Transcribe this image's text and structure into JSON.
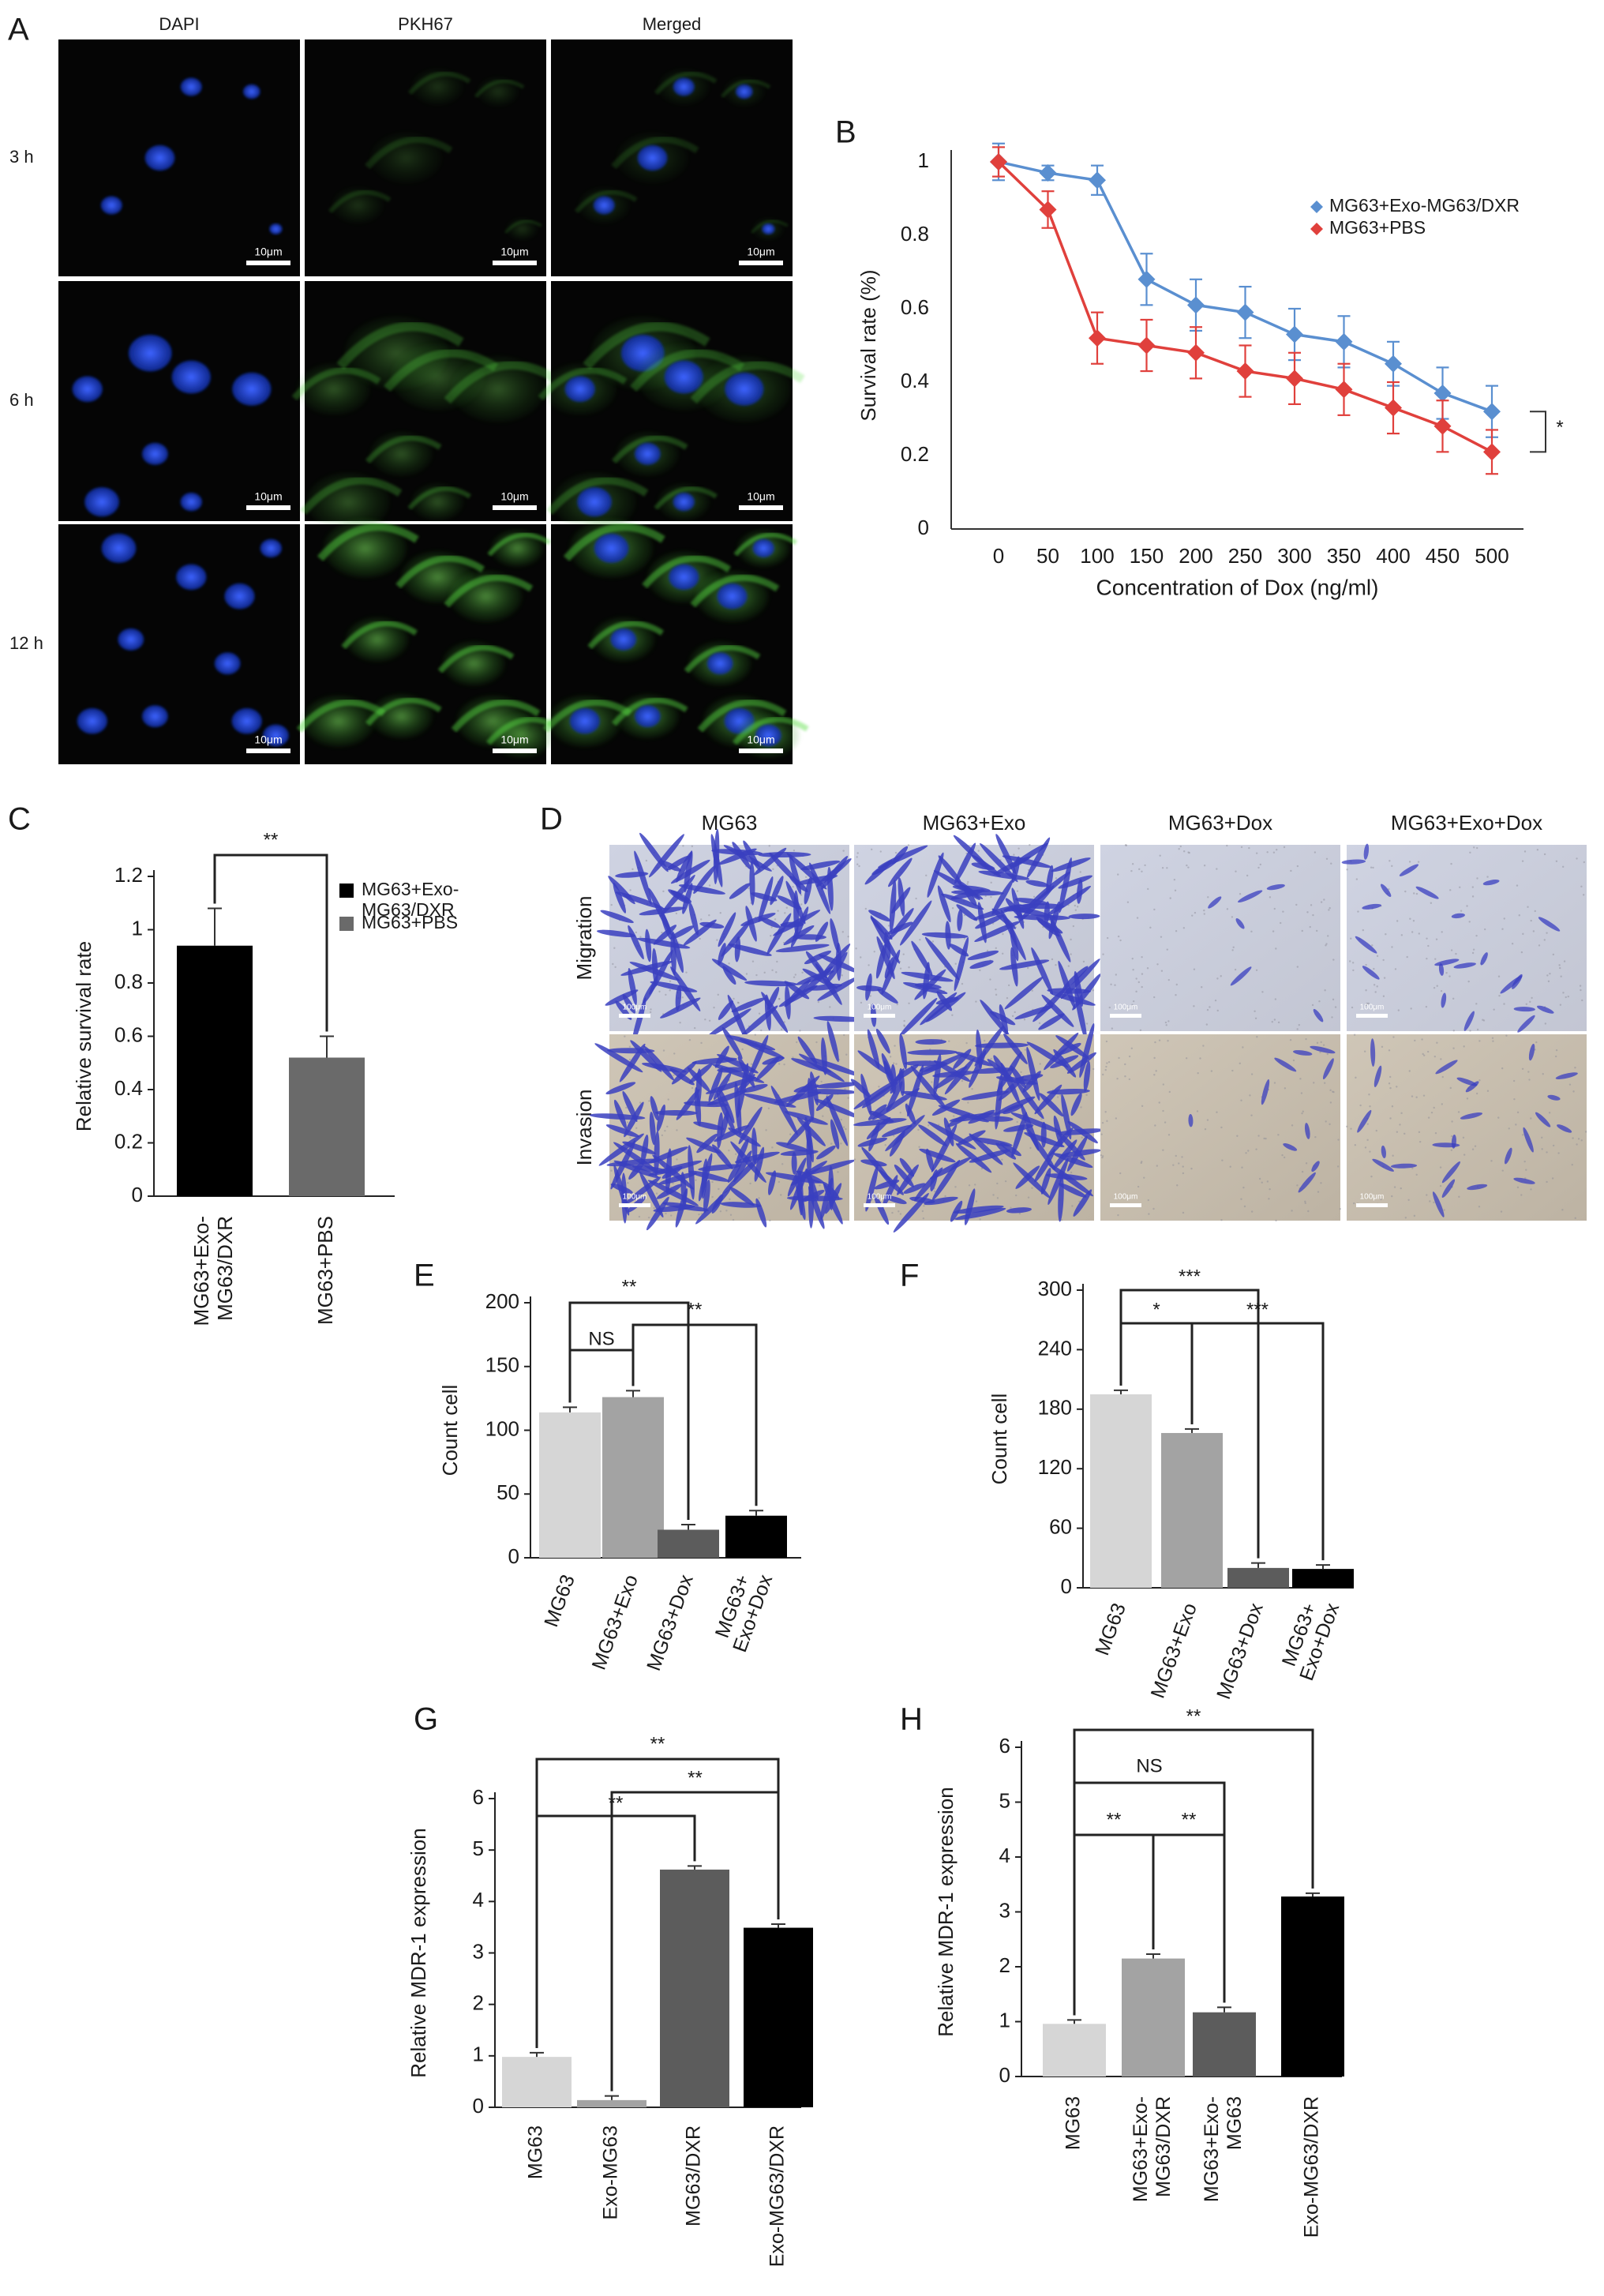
{
  "panel_letters": [
    "A",
    "B",
    "C",
    "D",
    "E",
    "F",
    "G",
    "H"
  ],
  "panel_a": {
    "columns": [
      "DAPI",
      "PKH67",
      "Merged"
    ],
    "rows": [
      "3 h",
      "6 h",
      "12 h"
    ],
    "scale_bar": "10μm"
  },
  "panel_d": {
    "columns": [
      "MG63",
      "MG63+Exo",
      "MG63+Dox",
      "MG63+Exo+Dox"
    ],
    "rows": [
      "Migration",
      "Invasion"
    ],
    "scale_bar": "100μm"
  },
  "colors": {
    "blue_series": "#5a8fd0",
    "red_series": "#e0403c",
    "nucleus": "#1a3fc0",
    "membrane": "#55d040",
    "stain": "#4048c8"
  },
  "chart_data": [
    {
      "panel": "B",
      "type": "line",
      "x": [
        0,
        50,
        100,
        150,
        200,
        250,
        300,
        350,
        400,
        450,
        500
      ],
      "xticks": [
        "0",
        "50",
        "100",
        "150",
        "200",
        "250",
        "300",
        "350",
        "400",
        "450",
        "500"
      ],
      "yticks": [
        "0",
        "0.2",
        "0.4",
        "0.6",
        "0.8",
        "1"
      ],
      "ylim": [
        0,
        1
      ],
      "xlabel": "Concentration of Dox (ng/ml)",
      "ylabel": "Survival rate (%)",
      "legend_position": "top-right",
      "series": [
        {
          "name": "MG63+Exo-MG63/DXR",
          "color": "#5a8fd0",
          "marker": "diamond",
          "values": [
            1.0,
            0.97,
            0.95,
            0.68,
            0.61,
            0.59,
            0.53,
            0.51,
            0.45,
            0.37,
            0.32
          ],
          "errors": [
            0.05,
            0.02,
            0.04,
            0.07,
            0.07,
            0.07,
            0.07,
            0.07,
            0.06,
            0.07,
            0.07
          ]
        },
        {
          "name": "MG63+PBS",
          "color": "#e0403c",
          "marker": "diamond",
          "values": [
            1.0,
            0.87,
            0.52,
            0.5,
            0.48,
            0.43,
            0.41,
            0.38,
            0.33,
            0.28,
            0.21
          ],
          "errors": [
            0.04,
            0.05,
            0.07,
            0.07,
            0.07,
            0.07,
            0.07,
            0.07,
            0.07,
            0.07,
            0.06
          ]
        }
      ],
      "significance": "*"
    },
    {
      "panel": "C",
      "type": "bar",
      "categories": [
        "MG63+Exo-\nMG63/DXR",
        "MG63+PBS"
      ],
      "values": [
        0.94,
        0.52
      ],
      "errors": [
        0.14,
        0.08
      ],
      "colors": [
        "#000000",
        "#6a6a6a"
      ],
      "yticks": [
        "0",
        "0.2",
        "0.4",
        "0.6",
        "0.8",
        "1",
        "1.2"
      ],
      "ylim": [
        0,
        1.2
      ],
      "ylabel": "Relative survival rate",
      "legend_position": "top-right",
      "legend": [
        {
          "label": "MG63+Exo-\nMG63/DXR",
          "color": "#000000"
        },
        {
          "label": "MG63+PBS",
          "color": "#6a6a6a"
        }
      ],
      "brackets": [
        {
          "from": 0,
          "to": 1,
          "label": "**"
        }
      ]
    },
    {
      "panel": "E",
      "type": "bar",
      "categories": [
        "MG63",
        "MG63+Exo",
        "MG63+Dox",
        "MG63+\nExo+Dox"
      ],
      "values": [
        114,
        126,
        22,
        33
      ],
      "errors": [
        4,
        5,
        4,
        4
      ],
      "colors": [
        "#d6d6d6",
        "#a3a3a3",
        "#5c5c5c",
        "#000000"
      ],
      "yticks": [
        "0",
        "50",
        "100",
        "150",
        "200"
      ],
      "ylim": [
        0,
        200
      ],
      "ylabel": "Count cell",
      "brackets": [
        {
          "from": 0,
          "to": 1,
          "label": "NS"
        },
        {
          "from": 0,
          "to": 2,
          "label": "**"
        },
        {
          "from": 1,
          "to": 3,
          "label": "**"
        }
      ]
    },
    {
      "panel": "F",
      "type": "bar",
      "categories": [
        "MG63",
        "MG63+Exo",
        "MG63+Dox",
        "MG63+\nExo+Dox"
      ],
      "values": [
        195,
        156,
        20,
        19
      ],
      "errors": [
        4,
        4,
        5,
        4
      ],
      "colors": [
        "#d6d6d6",
        "#a3a3a3",
        "#5c5c5c",
        "#000000"
      ],
      "yticks": [
        "0",
        "60",
        "120",
        "180",
        "240",
        "300"
      ],
      "ylim": [
        0,
        300
      ],
      "ylabel": "Count cell",
      "brackets": [
        {
          "from": 0,
          "to": 1,
          "label": "*"
        },
        {
          "from": 0,
          "to": 2,
          "label": "***"
        },
        {
          "from": 1,
          "to": 3,
          "label": "***"
        }
      ]
    },
    {
      "panel": "G",
      "type": "bar",
      "categories": [
        "MG63",
        "Exo-MG63",
        "MG63/DXR",
        "Exo-MG63/DXR"
      ],
      "values": [
        0.98,
        0.14,
        4.62,
        3.49
      ],
      "errors": [
        0.08,
        0.08,
        0.07,
        0.07
      ],
      "colors": [
        "#d6d6d6",
        "#a3a3a3",
        "#5c5c5c",
        "#000000"
      ],
      "yticks": [
        "0",
        "1",
        "2",
        "3",
        "4",
        "5",
        "6"
      ],
      "ylim": [
        0,
        6
      ],
      "ylabel": "Relative MDR-1 expression",
      "brackets": [
        {
          "from": 0,
          "to": 2,
          "label": "**"
        },
        {
          "from": 0,
          "to": 3,
          "label": "**"
        },
        {
          "from": 1,
          "to": 3,
          "label": "**"
        }
      ]
    },
    {
      "panel": "H",
      "type": "bar",
      "categories": [
        "MG63",
        "MG63+Exo-\nMG63/DXR",
        "MG63+Exo-\nMG63",
        "Exo-MG63/DXR"
      ],
      "values": [
        0.96,
        2.15,
        1.17,
        3.28
      ],
      "errors": [
        0.07,
        0.08,
        0.09,
        0.06
      ],
      "colors": [
        "#d6d6d6",
        "#a3a3a3",
        "#5c5c5c",
        "#000000"
      ],
      "yticks": [
        "0",
        "1",
        "2",
        "3",
        "4",
        "5",
        "6"
      ],
      "ylim": [
        0,
        6
      ],
      "ylabel": "Relative MDR-1 expression",
      "brackets": [
        {
          "from": 0,
          "to": 1,
          "label": "**"
        },
        {
          "from": 1,
          "to": 2,
          "label": "**"
        },
        {
          "from": 0,
          "to": 2,
          "label": "NS"
        },
        {
          "from": 0,
          "to": 3,
          "label": "**"
        }
      ]
    }
  ]
}
